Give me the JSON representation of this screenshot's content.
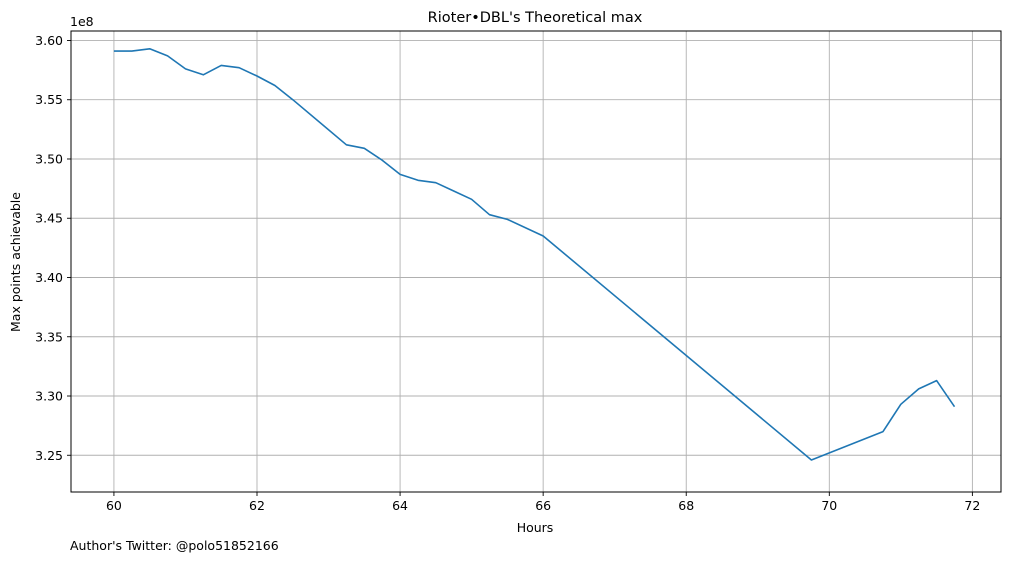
{
  "chart_data": {
    "type": "line",
    "title": "Rioter•DBL's Theoretical max",
    "xlabel": "Hours",
    "ylabel": "Max points achievable",
    "y_offset_label": "1e8",
    "footnote": "Author's Twitter: @polo51852166",
    "xlim": [
      59.4,
      72.4
    ],
    "ylim": [
      3.219,
      3.608
    ],
    "xticks": [
      60,
      62,
      64,
      66,
      68,
      70,
      72
    ],
    "xtick_labels": [
      "60",
      "62",
      "64",
      "66",
      "68",
      "70",
      "72"
    ],
    "yticks": [
      3.25,
      3.3,
      3.35,
      3.4,
      3.45,
      3.5,
      3.55,
      3.6
    ],
    "ytick_labels": [
      "3.25",
      "3.30",
      "3.35",
      "3.40",
      "3.45",
      "3.50",
      "3.55",
      "3.60"
    ],
    "grid": true,
    "line_color": "#1f77b4",
    "series": [
      {
        "x": [
          60.0,
          60.25,
          60.5,
          60.75,
          61.0,
          61.25,
          61.5,
          61.75,
          62.0,
          62.25,
          62.5,
          63.25,
          63.5,
          63.75,
          64.0,
          64.25,
          64.5,
          64.75,
          65.0,
          65.25,
          65.5,
          66.0,
          69.75,
          70.75,
          71.0,
          71.25,
          71.5,
          71.75
        ],
        "y": [
          3.591,
          3.591,
          3.593,
          3.587,
          3.576,
          3.571,
          3.579,
          3.577,
          3.57,
          3.562,
          3.55,
          3.512,
          3.509,
          3.499,
          3.487,
          3.482,
          3.48,
          3.473,
          3.466,
          3.453,
          3.449,
          3.435,
          3.246,
          3.27,
          3.293,
          3.306,
          3.313,
          3.291
        ]
      }
    ]
  }
}
